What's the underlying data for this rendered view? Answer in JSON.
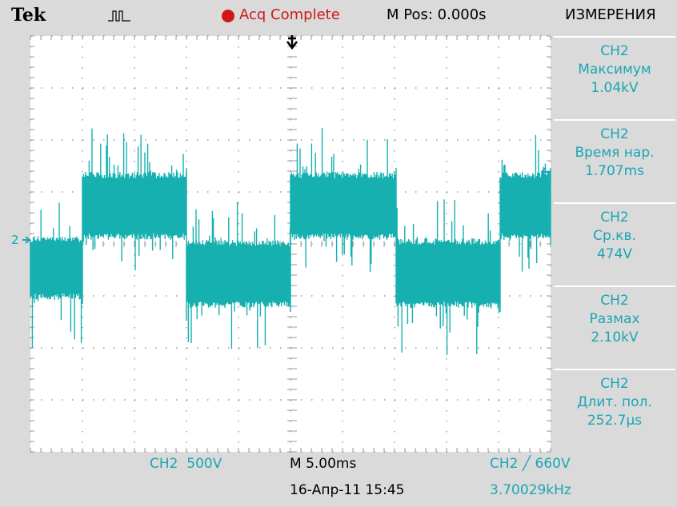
{
  "header": {
    "brand": "Tek",
    "status": "Acq Complete",
    "position": "M Pos: 0.000s",
    "menu": "ИЗМЕРЕНИЯ"
  },
  "channel_marker": "2",
  "measurements": [
    {
      "channel": "CH2",
      "name": "Максимум",
      "value": "1.04kV"
    },
    {
      "channel": "CH2",
      "name": "Время нар.",
      "value": "1.707ms"
    },
    {
      "channel": "CH2",
      "name": "Ср.кв.",
      "value": "474V"
    },
    {
      "channel": "CH2",
      "name": "Размах",
      "value": "2.10kV"
    },
    {
      "channel": "CH2",
      "name": "Длит. пол.",
      "value": "252.7µs"
    }
  ],
  "footer": {
    "channel_scale": "CH2  500V",
    "timebase": "M 5.00ms",
    "trigger": "CH2 ╱ 660V",
    "datetime": "16-Апр-11 15:45",
    "frequency": "3.70029kHz"
  }
}
